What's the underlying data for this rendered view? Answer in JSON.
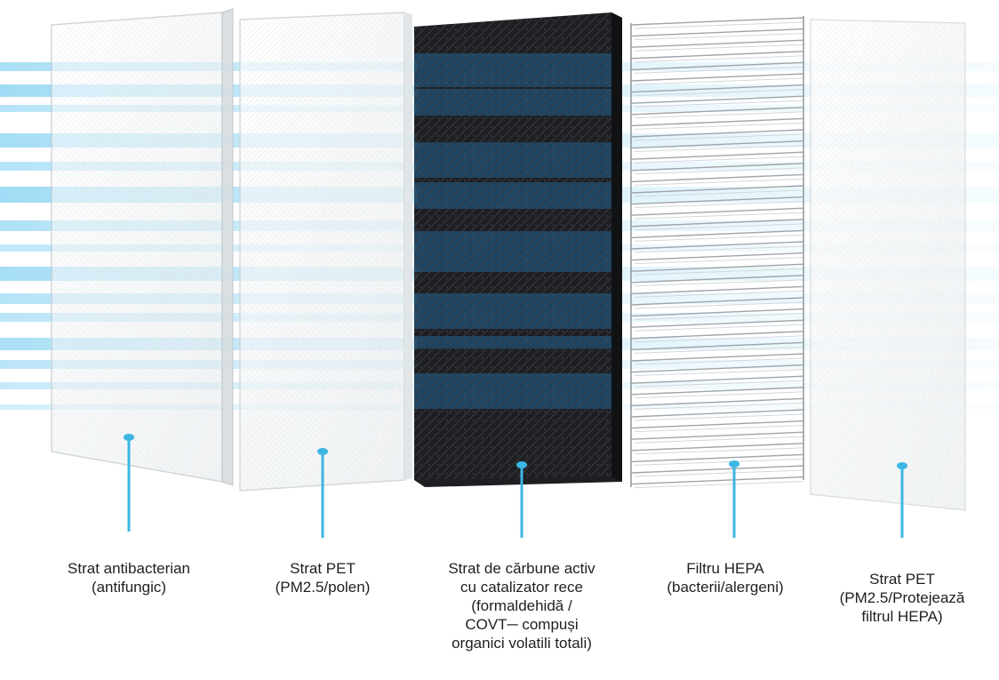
{
  "diagram": {
    "layers": [
      {
        "name": "antibacterial-layer",
        "lines": [
          "Strat antibacterian",
          "(antifungic)"
        ]
      },
      {
        "name": "pet-layer-1",
        "lines": [
          "Strat PET",
          "(PM2.5/polen)"
        ]
      },
      {
        "name": "carbon-layer",
        "lines": [
          "Strat de cărbune activ",
          "cu catalizator rece",
          "(formaldehidă /",
          "COVT─ compuși",
          "organici volatili totali)"
        ]
      },
      {
        "name": "hepa-layer",
        "lines": [
          "Filtru HEPA",
          "(bacterii/alergeni)"
        ]
      },
      {
        "name": "pet-layer-2",
        "lines": [
          "Strat PET",
          "(PM2.5/Protejează",
          "filtrul HEPA)"
        ]
      }
    ],
    "colors": {
      "airflow": "#8fd3f2",
      "leader_line": "#3db6e3",
      "carbon_dark": "#1d1f22",
      "carbon_blue": "#1f4e6e",
      "panel_white": "#f4f5f5"
    }
  }
}
